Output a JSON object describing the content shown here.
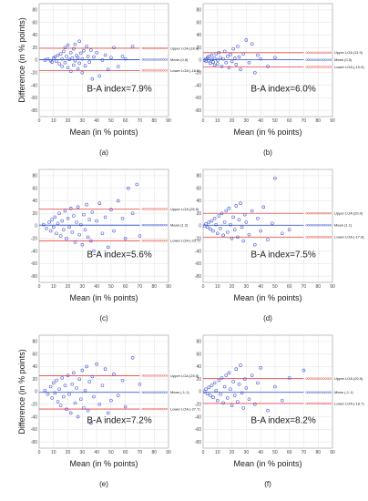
{
  "colors": {
    "upper": "#e8413c",
    "lower": "#e8413c",
    "mean": "#2f4fd8",
    "points": "#3a4fd0",
    "grid": "#d9d9d9",
    "frame": "#9a9a9a"
  },
  "chart_data": [
    {
      "id": "a",
      "panel_label": "(a)",
      "type": "scatter",
      "xlabel": "Mean (in % points)",
      "ylabel": "Difference (in % points)",
      "xlim": [
        0,
        90
      ],
      "ylim": [
        -90,
        90
      ],
      "xticks": [
        0,
        10,
        20,
        30,
        40,
        50,
        60,
        70,
        80,
        90
      ],
      "yticks": [
        -80,
        -60,
        -40,
        -20,
        0,
        20,
        40,
        60,
        80
      ],
      "upper_loa": 18.9,
      "mean_diff": 0.8,
      "lower_loa": -16.5,
      "upper_label": "Upper LOA (18.9)",
      "mean_label": "Mean (0.8)",
      "lower_label": "Lower LOA (-16.5)",
      "index_text": "B-A index=7.9%",
      "points_x": [
        4,
        6,
        8,
        9,
        10,
        11,
        12,
        13,
        14,
        15,
        16,
        16,
        17,
        18,
        18,
        19,
        20,
        20,
        21,
        22,
        22,
        23,
        24,
        24,
        25,
        25,
        26,
        27,
        27,
        28,
        28,
        29,
        30,
        30,
        31,
        32,
        33,
        34,
        35,
        36,
        37,
        38,
        40,
        42,
        44,
        46,
        48,
        50,
        52,
        55,
        58,
        60,
        65
      ],
      "points_y": [
        0,
        2,
        -1,
        -3,
        3,
        5,
        -2,
        8,
        -6,
        10,
        2,
        -10,
        14,
        -4,
        20,
        6,
        -12,
        24,
        1,
        -18,
        12,
        3,
        -8,
        18,
        -1,
        25,
        7,
        -14,
        4,
        30,
        -5,
        11,
        -20,
        2,
        15,
        -9,
        22,
        6,
        -3,
        16,
        -30,
        5,
        12,
        -25,
        0,
        8,
        -15,
        4,
        20,
        -10,
        6,
        2,
        22
      ]
    },
    {
      "id": "b",
      "panel_label": "(b)",
      "type": "scatter",
      "xlabel": "Mean (in % points)",
      "ylabel": "",
      "xlim": [
        0,
        90
      ],
      "ylim": [
        -90,
        90
      ],
      "xticks": [
        0,
        10,
        20,
        30,
        40,
        50,
        60,
        70,
        80,
        90
      ],
      "yticks": [
        -80,
        -60,
        -40,
        -20,
        0,
        20,
        40,
        60,
        80
      ],
      "upper_loa": 11.9,
      "mean_diff": 0.5,
      "lower_loa": -10.9,
      "upper_label": "Upper LOA (11.9)",
      "mean_label": "Mean (0.5)",
      "lower_label": "Lower LOA (-10.9)",
      "index_text": "B-A index=6.0%",
      "points_x": [
        1,
        2,
        2,
        3,
        4,
        4,
        5,
        6,
        6,
        7,
        8,
        8,
        9,
        10,
        10,
        11,
        12,
        13,
        14,
        15,
        16,
        17,
        18,
        19,
        20,
        21,
        22,
        23,
        24,
        25,
        26,
        28,
        30,
        32,
        34,
        36,
        38,
        40,
        45,
        50
      ],
      "points_y": [
        0,
        2,
        -2,
        4,
        -1,
        6,
        -5,
        1,
        8,
        -3,
        3,
        -8,
        10,
        0,
        -6,
        12,
        4,
        -10,
        2,
        14,
        -4,
        6,
        -12,
        9,
        -2,
        18,
        3,
        -7,
        22,
        5,
        -15,
        10,
        32,
        -4,
        26,
        -20,
        8,
        2,
        -10,
        4
      ]
    },
    {
      "id": "c",
      "panel_label": "(c)",
      "type": "scatter",
      "xlabel": "Mean (in % points)",
      "ylabel": "",
      "xlim": [
        0,
        90
      ],
      "ylim": [
        -90,
        90
      ],
      "xticks": [
        0,
        10,
        20,
        30,
        40,
        50,
        60,
        70,
        80,
        90
      ],
      "yticks": [
        -80,
        -60,
        -40,
        -20,
        0,
        20,
        40,
        60,
        80
      ],
      "upper_loa": 26.9,
      "mean_diff": 1.2,
      "lower_loa": -23.7,
      "upper_label": "Upper LOA (26.9)",
      "mean_label": "Mean (1.2)",
      "lower_label": "Lower LOA (-23.7)",
      "index_text": "B-A index=5.6%",
      "points_x": [
        3,
        5,
        7,
        8,
        9,
        10,
        11,
        12,
        13,
        14,
        15,
        16,
        17,
        18,
        19,
        20,
        21,
        22,
        23,
        24,
        25,
        26,
        27,
        28,
        29,
        30,
        31,
        32,
        33,
        34,
        35,
        36,
        37,
        38,
        40,
        42,
        44,
        46,
        48,
        50,
        52,
        55,
        58,
        60,
        62,
        65,
        68,
        70
      ],
      "points_y": [
        2,
        -4,
        6,
        -8,
        10,
        -2,
        14,
        -12,
        4,
        20,
        -16,
        8,
        -6,
        24,
        -20,
        12,
        -2,
        28,
        -10,
        16,
        -26,
        6,
        30,
        -14,
        2,
        -30,
        18,
        -6,
        34,
        -18,
        10,
        -24,
        22,
        -40,
        8,
        36,
        -12,
        14,
        -34,
        26,
        -8,
        40,
        12,
        -20,
        60,
        20,
        66,
        -16
      ]
    },
    {
      "id": "d",
      "panel_label": "(d)",
      "type": "scatter",
      "xlabel": "Mean (in % points)",
      "ylabel": "",
      "xlim": [
        0,
        90
      ],
      "ylim": [
        -90,
        90
      ],
      "xticks": [
        0,
        10,
        20,
        30,
        40,
        50,
        60,
        70,
        80,
        90
      ],
      "yticks": [
        -80,
        -60,
        -40,
        -20,
        0,
        20,
        40,
        60,
        80
      ],
      "upper_loa": 20.0,
      "mean_diff": 1.1,
      "lower_loa": -17.8,
      "upper_label": "Upper LOA (20.0)",
      "mean_label": "Mean (1.1)",
      "lower_label": "Lower LOA (-17.8)",
      "index_text": "B-A index=7.5%",
      "points_x": [
        1,
        2,
        3,
        4,
        5,
        6,
        7,
        8,
        9,
        10,
        11,
        12,
        13,
        14,
        15,
        16,
        17,
        18,
        19,
        20,
        21,
        22,
        23,
        24,
        25,
        26,
        27,
        28,
        29,
        30,
        32,
        34,
        36,
        38,
        40,
        42,
        45,
        48,
        50,
        55,
        60
      ],
      "points_y": [
        0,
        3,
        -2,
        6,
        -5,
        8,
        -8,
        12,
        2,
        -12,
        16,
        -4,
        20,
        -15,
        6,
        24,
        -10,
        28,
        2,
        -20,
        14,
        -6,
        32,
        -18,
        10,
        36,
        -2,
        -24,
        18,
        6,
        -14,
        24,
        -30,
        12,
        -8,
        30,
        -22,
        4,
        76,
        -12,
        -6
      ]
    },
    {
      "id": "e",
      "panel_label": "(e)",
      "type": "scatter",
      "xlabel": "Mean (in % points)",
      "ylabel": "Difference (in % points)",
      "xlim": [
        0,
        90
      ],
      "ylim": [
        -90,
        90
      ],
      "xticks": [
        0,
        10,
        20,
        30,
        40,
        50,
        60,
        70,
        80,
        90
      ],
      "yticks": [
        -80,
        -60,
        -40,
        -20,
        0,
        20,
        40,
        60,
        80
      ],
      "upper_loa": 25.5,
      "mean_diff": -1.1,
      "lower_loa": -27.7,
      "upper_label": "Upper LOA (25.5)",
      "mean_label": "Mean (-1.1)",
      "lower_label": "Lower LOA (-27.7)",
      "index_text": "B-A index=7.2%",
      "points_x": [
        4,
        6,
        8,
        9,
        10,
        11,
        12,
        13,
        14,
        15,
        16,
        17,
        18,
        19,
        20,
        21,
        22,
        23,
        24,
        25,
        26,
        27,
        28,
        29,
        30,
        31,
        32,
        33,
        34,
        35,
        36,
        37,
        38,
        40,
        42,
        44,
        46,
        48,
        50,
        52,
        55,
        58,
        60,
        65,
        70
      ],
      "points_y": [
        2,
        -4,
        8,
        -10,
        14,
        -2,
        18,
        -16,
        4,
        -22,
        22,
        -8,
        10,
        -28,
        26,
        -4,
        -34,
        12,
        30,
        -18,
        6,
        -40,
        20,
        -12,
        34,
        -26,
        2,
        40,
        -30,
        16,
        -50,
        24,
        -8,
        44,
        -20,
        10,
        36,
        -34,
        -14,
        28,
        -6,
        18,
        -24,
        54,
        12
      ]
    },
    {
      "id": "f",
      "panel_label": "(f)",
      "type": "scatter",
      "xlabel": "Mean (in % points)",
      "ylabel": "",
      "xlim": [
        0,
        90
      ],
      "ylim": [
        -90,
        90
      ],
      "xticks": [
        0,
        10,
        20,
        30,
        40,
        50,
        60,
        70,
        80,
        90
      ],
      "yticks": [
        -80,
        -60,
        -40,
        -20,
        0,
        20,
        40,
        60,
        80
      ],
      "upper_loa": 20.9,
      "mean_diff": -1.1,
      "lower_loa": -18.7,
      "upper_label": "Upper LOA (20.9)",
      "mean_label": "Mean (-1.1)",
      "lower_label": "Lower LOA (-18.7)",
      "index_text": "B-A index=8.2%",
      "points_x": [
        1,
        2,
        3,
        4,
        5,
        6,
        7,
        8,
        9,
        10,
        11,
        12,
        13,
        14,
        15,
        16,
        17,
        18,
        19,
        20,
        21,
        22,
        23,
        24,
        25,
        26,
        27,
        28,
        29,
        30,
        32,
        34,
        36,
        38,
        40,
        45,
        50,
        55,
        60,
        70
      ],
      "points_y": [
        0,
        4,
        -3,
        7,
        -6,
        10,
        -9,
        14,
        2,
        -14,
        18,
        -4,
        22,
        -18,
        8,
        26,
        -10,
        30,
        4,
        -22,
        16,
        -6,
        36,
        -16,
        12,
        42,
        -2,
        -26,
        20,
        6,
        -12,
        26,
        -20,
        14,
        38,
        -30,
        8,
        -14,
        22,
        34
      ]
    }
  ]
}
